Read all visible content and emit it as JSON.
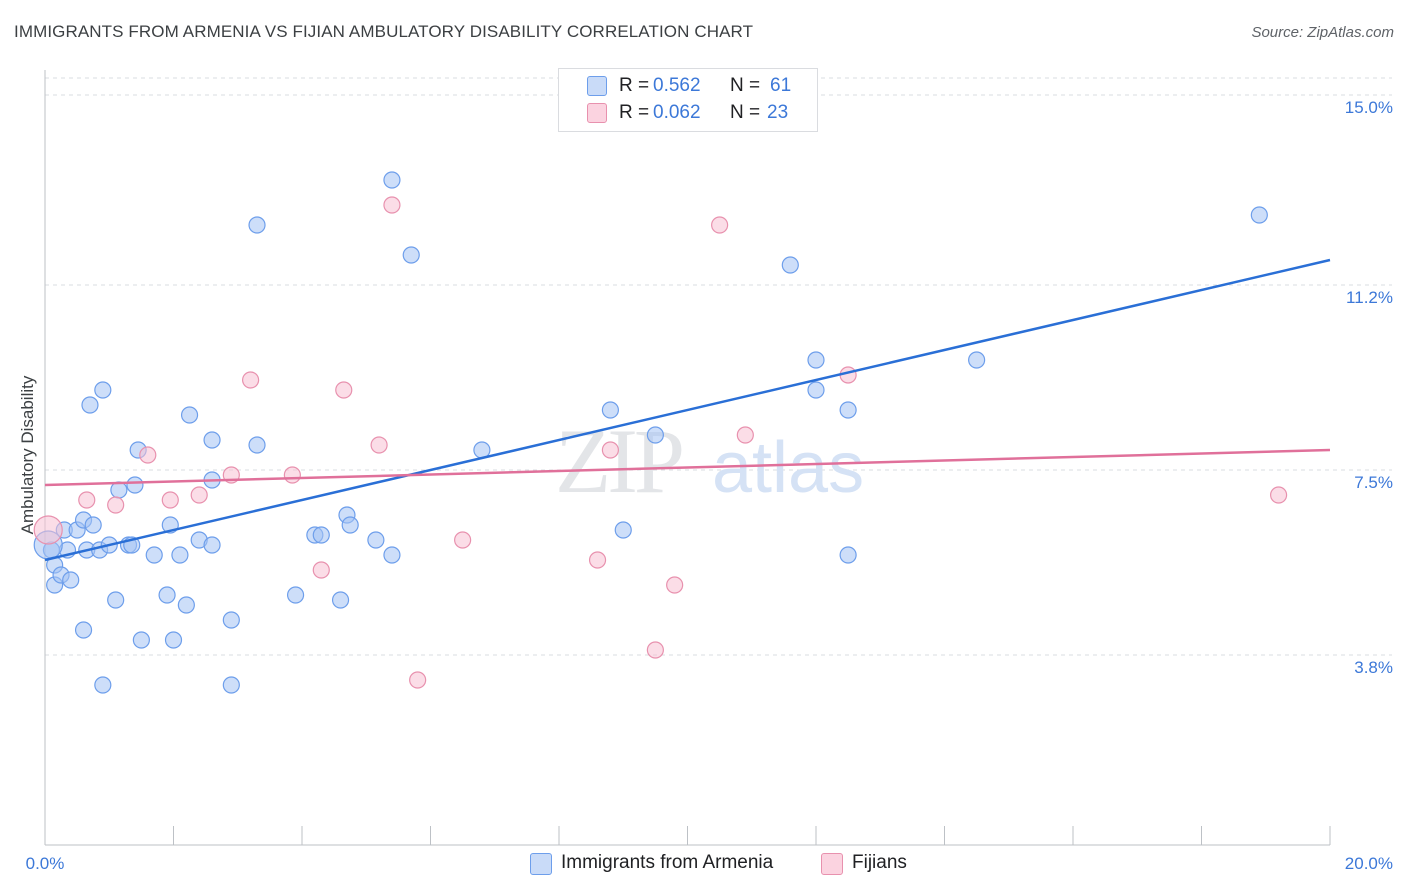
{
  "header": {
    "title": "IMMIGRANTS FROM ARMENIA VS FIJIAN AMBULATORY DISABILITY CORRELATION CHART",
    "source": "Source: ZipAtlas.com"
  },
  "watermark": {
    "zip": "ZIP",
    "atlas": "atlas"
  },
  "legend": {
    "r_label": "R =",
    "n_label": "N =",
    "series": [
      {
        "r": "0.562",
        "n": "61"
      },
      {
        "r": "0.062",
        "n": "23"
      }
    ]
  },
  "colors": {
    "armenia_fill": "#a4c2f4",
    "armenia_stroke": "#6d9eeb",
    "armenia_line": "#2a6fd6",
    "fijians_fill": "#f8c1d3",
    "fijians_stroke": "#e891ae",
    "fijians_line": "#e0709a",
    "tick_text": "#3c78d8",
    "grid": "#dadce0"
  },
  "chart_data": {
    "type": "scatter",
    "title": "IMMIGRANTS FROM ARMENIA VS FIJIAN AMBULATORY DISABILITY CORRELATION CHART",
    "xlabel": "",
    "ylabel": "Ambulatory Disability",
    "xlim": [
      0,
      20
    ],
    "ylim": [
      0,
      15.5
    ],
    "x_tick_labels": [
      "0.0%",
      "20.0%"
    ],
    "y_ticks": [
      {
        "value": 3.8,
        "label": "3.8%"
      },
      {
        "value": 7.5,
        "label": "7.5%"
      },
      {
        "value": 11.2,
        "label": "11.2%"
      },
      {
        "value": 15.0,
        "label": "15.0%"
      }
    ],
    "grid": true,
    "legend_position": "top-center",
    "series": [
      {
        "name": "Immigrants from Armenia",
        "trend": {
          "x": [
            0,
            20
          ],
          "y": [
            5.7,
            11.7
          ]
        },
        "points": [
          [
            0.1,
            5.9
          ],
          [
            0.15,
            5.2
          ],
          [
            0.15,
            5.6
          ],
          [
            0.25,
            5.4
          ],
          [
            0.3,
            6.3
          ],
          [
            0.35,
            5.9
          ],
          [
            0.4,
            5.3
          ],
          [
            0.5,
            6.3
          ],
          [
            0.6,
            4.3
          ],
          [
            0.6,
            6.5
          ],
          [
            0.65,
            5.9
          ],
          [
            0.7,
            8.8
          ],
          [
            0.75,
            6.4
          ],
          [
            0.85,
            5.9
          ],
          [
            0.9,
            9.1
          ],
          [
            0.9,
            3.2
          ],
          [
            1.0,
            6.0
          ],
          [
            1.1,
            4.9
          ],
          [
            1.15,
            7.1
          ],
          [
            1.3,
            6.0
          ],
          [
            1.35,
            6.0
          ],
          [
            1.4,
            7.2
          ],
          [
            1.45,
            7.9
          ],
          [
            1.5,
            4.1
          ],
          [
            1.7,
            5.8
          ],
          [
            1.9,
            5.0
          ],
          [
            1.95,
            6.4
          ],
          [
            2.0,
            4.1
          ],
          [
            2.1,
            5.8
          ],
          [
            2.2,
            4.8
          ],
          [
            2.25,
            8.6
          ],
          [
            2.4,
            6.1
          ],
          [
            2.6,
            8.1
          ],
          [
            2.6,
            7.3
          ],
          [
            2.6,
            6.0
          ],
          [
            2.9,
            4.5
          ],
          [
            2.9,
            3.2
          ],
          [
            3.3,
            12.4
          ],
          [
            3.3,
            8.0
          ],
          [
            3.9,
            5.0
          ],
          [
            4.2,
            6.2
          ],
          [
            4.3,
            6.2
          ],
          [
            4.6,
            4.9
          ],
          [
            4.7,
            6.6
          ],
          [
            4.75,
            6.4
          ],
          [
            5.15,
            6.1
          ],
          [
            5.4,
            13.3
          ],
          [
            5.4,
            5.8
          ],
          [
            5.7,
            11.8
          ],
          [
            6.8,
            7.9
          ],
          [
            8.8,
            8.7
          ],
          [
            9.0,
            6.3
          ],
          [
            9.5,
            8.2
          ],
          [
            11.6,
            11.6
          ],
          [
            12.0,
            9.7
          ],
          [
            12.0,
            9.1
          ],
          [
            12.5,
            8.7
          ],
          [
            12.5,
            5.8
          ],
          [
            14.5,
            9.7
          ],
          [
            18.9,
            12.6
          ],
          [
            0.05,
            6.0
          ]
        ]
      },
      {
        "name": "Fijians",
        "trend": {
          "x": [
            0,
            20
          ],
          "y": [
            7.2,
            7.9
          ]
        },
        "points": [
          [
            0.05,
            6.3
          ],
          [
            0.65,
            6.9
          ],
          [
            1.1,
            6.8
          ],
          [
            1.6,
            7.8
          ],
          [
            1.95,
            6.9
          ],
          [
            2.4,
            7.0
          ],
          [
            2.9,
            7.4
          ],
          [
            3.2,
            9.3
          ],
          [
            3.85,
            7.4
          ],
          [
            4.3,
            5.5
          ],
          [
            4.65,
            9.1
          ],
          [
            5.2,
            8.0
          ],
          [
            5.4,
            12.8
          ],
          [
            5.8,
            3.3
          ],
          [
            6.5,
            6.1
          ],
          [
            8.6,
            5.7
          ],
          [
            8.8,
            7.9
          ],
          [
            9.5,
            3.9
          ],
          [
            9.8,
            5.2
          ],
          [
            10.5,
            12.4
          ],
          [
            10.9,
            8.2
          ],
          [
            12.5,
            9.4
          ],
          [
            19.2,
            7.0
          ]
        ]
      }
    ]
  }
}
